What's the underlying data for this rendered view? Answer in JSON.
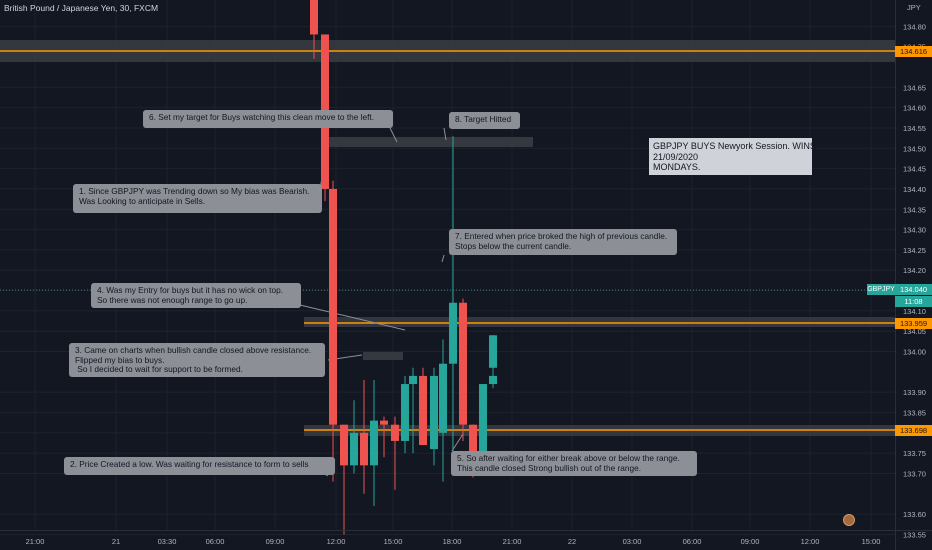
{
  "header": {
    "symbol_title": "British Pound / Japanese Yen, 30, FXCM",
    "currency": "JPY"
  },
  "colors": {
    "background": "#131722",
    "bull": "#26a69a",
    "bear": "#ef5350",
    "level_line": "#ff9800",
    "zone_fill": "#3a3c42",
    "callout_bg": "#8c8f96"
  },
  "price_axis": {
    "min": 133.45,
    "max": 134.85,
    "ticks": [
      "134.80",
      "134.75",
      "134.65",
      "134.60",
      "134.55",
      "134.50",
      "134.45",
      "134.40",
      "134.35",
      "134.30",
      "134.25",
      "134.20",
      "134.15",
      "134.10",
      "134.05",
      "134.00",
      "133.90",
      "133.85",
      "133.80",
      "133.75",
      "133.70",
      "133.60",
      "133.55",
      "133.50"
    ]
  },
  "price_tags": {
    "resistance_top": "134.616",
    "current_price": "134.040",
    "countdown": "11:08",
    "support_top": "133.959",
    "support_bottom": "133.698",
    "symbol_badge": "GBPJPY"
  },
  "time_axis": {
    "labels": [
      "21:00",
      "21",
      "03:30",
      "06:00",
      "09:00",
      "12:00",
      "15:00",
      "18:00",
      "21:00",
      "22",
      "03:00",
      "06:00",
      "09:00",
      "12:00",
      "15:00"
    ]
  },
  "chart_data": {
    "type": "candlestick",
    "symbol": "GBPJPY",
    "timeframe": "30",
    "candles": [
      {
        "o": 134.96,
        "h": 135.0,
        "l": 134.72,
        "c": 134.78
      },
      {
        "o": 134.78,
        "h": 134.78,
        "l": 134.37,
        "c": 134.4
      },
      {
        "o": 134.4,
        "h": 134.42,
        "l": 133.68,
        "c": 133.82
      },
      {
        "o": 133.82,
        "h": 133.82,
        "l": 133.55,
        "c": 133.72
      },
      {
        "o": 133.72,
        "h": 133.88,
        "l": 133.7,
        "c": 133.8
      },
      {
        "o": 133.8,
        "h": 133.93,
        "l": 133.65,
        "c": 133.72
      },
      {
        "o": 133.72,
        "h": 133.93,
        "l": 133.62,
        "c": 133.83
      },
      {
        "o": 133.83,
        "h": 133.84,
        "l": 133.74,
        "c": 133.82
      },
      {
        "o": 133.82,
        "h": 133.84,
        "l": 133.66,
        "c": 133.78
      },
      {
        "o": 133.78,
        "h": 133.94,
        "l": 133.75,
        "c": 133.92
      },
      {
        "o": 133.92,
        "h": 133.96,
        "l": 133.75,
        "c": 133.94
      },
      {
        "o": 133.94,
        "h": 133.96,
        "l": 133.77,
        "c": 133.77
      },
      {
        "o": 133.76,
        "h": 133.96,
        "l": 133.72,
        "c": 133.94
      },
      {
        "o": 133.8,
        "h": 134.03,
        "l": 133.68,
        "c": 133.97
      },
      {
        "o": 133.97,
        "h": 134.53,
        "l": 133.72,
        "c": 134.12
      },
      {
        "o": 134.12,
        "h": 134.13,
        "l": 133.78,
        "c": 133.82
      },
      {
        "o": 133.82,
        "h": 133.82,
        "l": 133.69,
        "c": 133.72
      },
      {
        "o": 133.73,
        "h": 133.92,
        "l": 133.72,
        "c": 133.92
      },
      {
        "o": 133.92,
        "h": 133.96,
        "l": 133.91,
        "c": 133.94
      },
      {
        "o": 133.96,
        "h": 134.04,
        "l": 133.95,
        "c": 134.04
      }
    ]
  },
  "annotations": {
    "note1": "1. Since GBPJPY was Trending down so My bias was Bearish.\nWas Looking to anticipate in Sells.",
    "note2": "2. Price Created a low. Was waiting for resistance to form to sells",
    "note3": "3. Came on charts when bullish candle closed above resistance.\nFlipped my bias to buys.\n So I decided to wait for support to be formed.",
    "note4": "4. Was my Entry for buys but it has no wick on top.\nSo there was not enough range to go up.",
    "note5": "5. So after waiting for either break above or below the range.\nThis candle closed Strong bullish out of the range.",
    "note6": "6. Set my target for Buys watching this clean move to the left.",
    "note7": "7. Entered when price broked the high of previous candle.\nStops below the current candle.",
    "note8": "8. Target Hitted"
  },
  "info_box": {
    "line1": "GBPJPY BUYS Newyork Session. WINS",
    "line2": "21/09/2020",
    "line3": "MONDAYS."
  }
}
